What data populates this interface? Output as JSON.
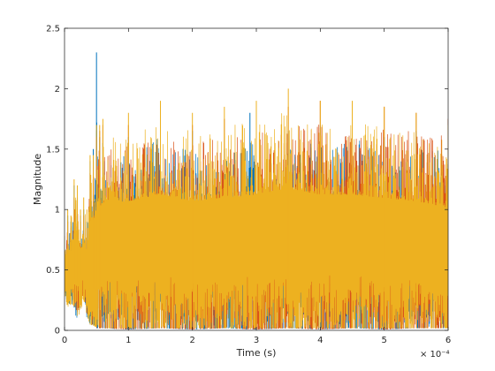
{
  "chart_data": {
    "type": "line",
    "title": "",
    "xlabel": "Time (s)",
    "ylabel": "Magnitude",
    "x_exponent_label": "× 10⁻⁴",
    "xlim": [
      0,
      6
    ],
    "ylim": [
      0,
      2.5
    ],
    "xticks": [
      0,
      1,
      2,
      3,
      4,
      5,
      6
    ],
    "xtick_labels": [
      "0",
      "1",
      "2",
      "3",
      "4",
      "5",
      "6"
    ],
    "yticks": [
      0,
      0.5,
      1,
      1.5,
      2,
      2.5
    ],
    "ytick_labels": [
      "0",
      "0.5",
      "1",
      "1.5",
      "2",
      "2.5"
    ],
    "grid": false,
    "legend": "none",
    "series": [
      {
        "color": "#0072BD",
        "x": [
          0,
          0.05,
          0.1,
          0.15,
          0.2,
          0.25,
          0.3,
          0.35,
          0.4,
          0.45,
          0.5,
          0.55,
          0.6,
          1.0,
          1.5,
          2.0,
          2.5,
          2.9,
          3.0,
          3.5,
          4.0,
          4.5,
          5.0,
          5.5,
          6.0
        ],
        "y_min": [
          0.35,
          0.2,
          0.25,
          0.15,
          0.1,
          0.2,
          0.3,
          0.1,
          0.05,
          0.05,
          0.02,
          0.02,
          0.02,
          0.01,
          0.02,
          0.01,
          0.02,
          0.01,
          0.01,
          0.02,
          0.01,
          0.02,
          0.01,
          0.02,
          0.02
        ],
        "y_max": [
          0.75,
          0.95,
          0.9,
          1.2,
          1.1,
          0.95,
          1.0,
          0.9,
          1.4,
          1.5,
          2.3,
          1.6,
          1.55,
          1.6,
          1.75,
          1.65,
          1.5,
          1.8,
          1.6,
          1.65,
          1.7,
          1.8,
          1.6,
          1.65,
          1.6
        ]
      },
      {
        "color": "#D95319",
        "x": [
          0,
          0.05,
          0.1,
          0.15,
          0.2,
          0.25,
          0.3,
          0.35,
          0.4,
          0.45,
          0.5,
          0.55,
          0.6,
          1.0,
          1.5,
          2.0,
          2.5,
          3.0,
          3.5,
          4.0,
          4.5,
          5.0,
          5.5,
          6.0
        ],
        "y_min": [
          0.4,
          0.25,
          0.3,
          0.2,
          0.15,
          0.25,
          0.3,
          0.15,
          0.05,
          0.05,
          0.02,
          0.02,
          0.02,
          0.01,
          0.02,
          0.01,
          0.02,
          0.01,
          0.02,
          0.01,
          0.02,
          0.01,
          0.02,
          0.02
        ],
        "y_max": [
          0.7,
          0.9,
          0.85,
          1.1,
          1.05,
          0.9,
          0.95,
          0.85,
          1.3,
          1.4,
          1.6,
          1.65,
          1.7,
          1.7,
          1.75,
          1.7,
          1.75,
          1.8,
          1.85,
          1.9,
          1.75,
          1.85,
          1.8,
          1.75
        ]
      },
      {
        "color": "#EDB120",
        "x": [
          0,
          0.05,
          0.1,
          0.15,
          0.2,
          0.25,
          0.3,
          0.35,
          0.4,
          0.45,
          0.5,
          0.55,
          0.6,
          1.0,
          1.5,
          2.0,
          2.5,
          3.0,
          3.5,
          4.0,
          4.5,
          5.0,
          5.5,
          6.0
        ],
        "y_min": [
          0.32,
          0.18,
          0.22,
          0.12,
          0.1,
          0.16,
          0.25,
          0.12,
          0.05,
          0.04,
          0.03,
          0.03,
          0.02,
          0.02,
          0.02,
          0.02,
          0.02,
          0.02,
          0.02,
          0.02,
          0.02,
          0.02,
          0.02,
          0.02
        ],
        "y_max": [
          0.78,
          1.0,
          0.95,
          1.25,
          1.2,
          1.0,
          1.1,
          1.0,
          1.45,
          1.45,
          1.7,
          1.7,
          1.75,
          1.8,
          1.9,
          1.8,
          1.85,
          1.9,
          2.0,
          1.9,
          1.9,
          1.85,
          1.8,
          1.7
        ]
      }
    ]
  }
}
